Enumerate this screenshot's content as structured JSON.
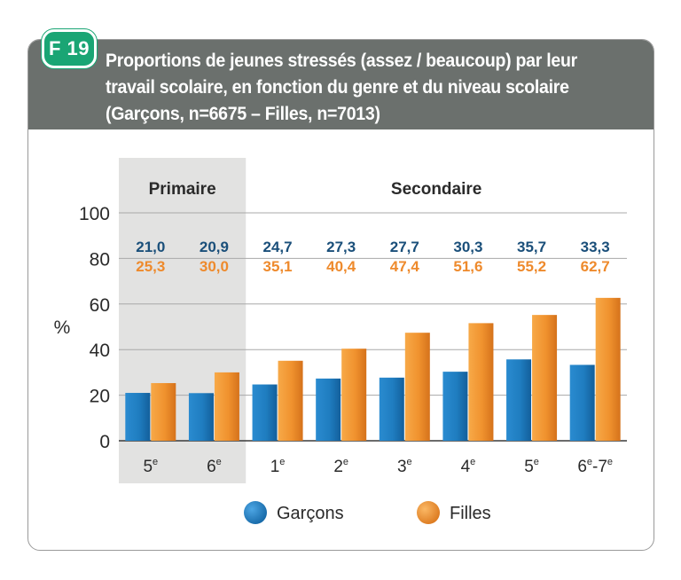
{
  "header": {
    "badge": "F 19",
    "title": "Proportions de jeunes stressés (assez / beaucoup) par leur travail scolaire, en fonction du genre et du niveau scolaire (Garçons, n=6675 – Filles, n=7013)"
  },
  "chart_data": {
    "type": "bar",
    "ylabel": "%",
    "ylim": [
      0,
      100
    ],
    "yticks": [
      "0",
      "20",
      "40",
      "60",
      "80",
      "100"
    ],
    "grid": true,
    "groups": [
      {
        "label": "Primaire",
        "shaded": true
      },
      {
        "label": "Secondaire",
        "shaded": false
      }
    ],
    "categories": [
      {
        "base": "5",
        "sup": "e"
      },
      {
        "base": "6",
        "sup": "e"
      },
      {
        "base": "1",
        "sup": "e"
      },
      {
        "base": "2",
        "sup": "e"
      },
      {
        "base": "3",
        "sup": "e"
      },
      {
        "base": "4",
        "sup": "e"
      },
      {
        "base": "5",
        "sup": "e"
      },
      {
        "base": "6",
        "sup": "e",
        "base2": "-7",
        "sup2": "e"
      }
    ],
    "series": [
      {
        "name": "Garçons",
        "color": "#1f7dc0",
        "label_color": "#1a4f7a",
        "values": [
          21.0,
          20.9,
          24.7,
          27.3,
          27.7,
          30.3,
          35.7,
          33.3
        ],
        "labels": [
          "21,0",
          "20,9",
          "24,7",
          "27,3",
          "27,7",
          "30,3",
          "35,7",
          "33,3"
        ]
      },
      {
        "name": "Filles",
        "color": "#f0922e",
        "label_color": "#ee8a2c",
        "values": [
          25.3,
          30.0,
          35.1,
          40.4,
          47.4,
          51.6,
          55.2,
          62.7
        ],
        "labels": [
          "25,3",
          "30,0",
          "35,1",
          "40,4",
          "47,4",
          "51,6",
          "55,2",
          "62,7"
        ]
      }
    ],
    "legend_position": "bottom"
  }
}
